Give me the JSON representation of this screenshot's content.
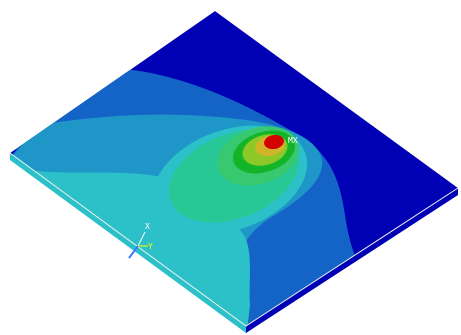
{
  "plot": {
    "background": "#ffffff",
    "contour_colors": {
      "band_1_min": "#0000b4",
      "band_2": "#1464c8",
      "band_3": "#1e96c8",
      "band_4": "#2cc1c8",
      "band_5": "#28c896",
      "band_6": "#38c870",
      "band_7": "#14b428",
      "band_8": "#8cc828",
      "band_9": "#d2b428",
      "band_10_max": "#d20000",
      "edge": "#f0f0f0"
    },
    "max_marker": {
      "label": "MX",
      "color": "#ffffff"
    },
    "triad": {
      "x_label": "X",
      "y_label": "Y",
      "x_color": "#ffffff",
      "y_color": "#ffff00",
      "z_color": "#3c78ff"
    }
  }
}
